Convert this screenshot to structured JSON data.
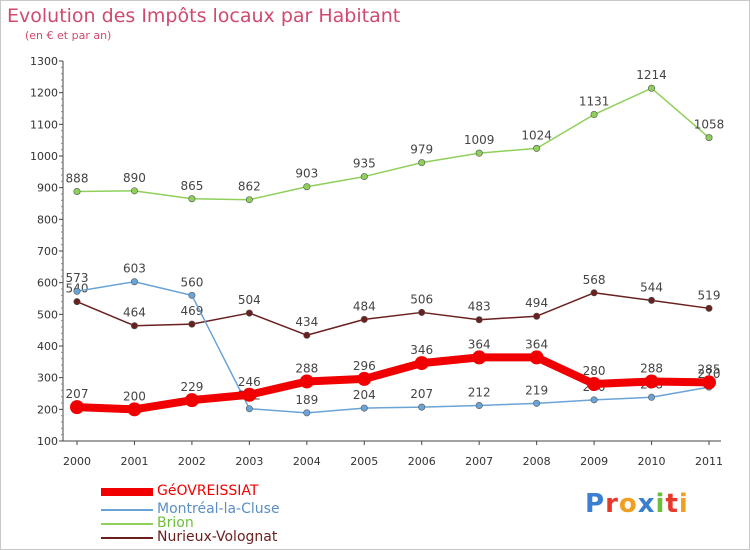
{
  "chart_data": {
    "type": "line",
    "title": "Evolution des Impôts locaux par Habitant",
    "subtitle": "(en € et par an)",
    "x": [
      "2000",
      "2001",
      "2002",
      "2003",
      "2004",
      "2005",
      "2006",
      "2007",
      "2008",
      "2009",
      "2010",
      "2011"
    ],
    "ylim": [
      100,
      1300
    ],
    "yticks": [
      100,
      200,
      300,
      400,
      500,
      600,
      700,
      800,
      900,
      1000,
      1100,
      1200,
      1300
    ],
    "grid": false,
    "legend_position": "bottom-left",
    "series": [
      {
        "name": "Brion",
        "color": "#8fd05a",
        "values": [
          888,
          890,
          865,
          862,
          903,
          935,
          979,
          1009,
          1024,
          1131,
          1214,
          1058
        ],
        "labels": [
          "888",
          "890",
          "865",
          "862",
          "903",
          "935",
          "979",
          "1009",
          "1024",
          "1131",
          "1214",
          "1058"
        ]
      },
      {
        "name": "Nurieux-Volognat",
        "color": "#6b2020",
        "values": [
          540,
          464,
          469,
          504,
          434,
          484,
          506,
          483,
          494,
          568,
          544,
          519
        ],
        "labels": [
          "540",
          "464",
          "469",
          "504",
          "434",
          "484",
          "506",
          "483",
          "494",
          "568",
          "544",
          "519"
        ]
      },
      {
        "name": "Montréal-la-Cluse",
        "color": "#6aa3d6",
        "values": [
          573,
          603,
          560,
          202,
          189,
          204,
          207,
          212,
          219,
          230,
          238,
          270
        ],
        "labels": [
          "573",
          "603",
          "560",
          "202",
          "189",
          "204",
          "207",
          "212",
          "219",
          "230",
          "238",
          "270"
        ]
      },
      {
        "name": "GéOVREISSIAT",
        "color": "#f00000",
        "values": [
          207,
          200,
          229,
          246,
          288,
          296,
          346,
          364,
          364,
          280,
          288,
          285
        ],
        "labels": [
          "207",
          "200",
          "229",
          "246",
          "288",
          "296",
          "346",
          "364",
          "364",
          "280",
          "288",
          "285"
        ]
      }
    ]
  },
  "legend": [
    {
      "label": "GéOVREISSIAT",
      "color": "#f00000"
    },
    {
      "label": "Montréal-la-Cluse",
      "color": "#6aa3d6"
    },
    {
      "label": "Brion",
      "color": "#8fd05a"
    },
    {
      "label": "Nurieux-Volognat",
      "color": "#6b2020"
    }
  ],
  "logo": {
    "text": "Proxiti"
  },
  "colors": {
    "title": "#d04a6e",
    "axis": "#444444"
  }
}
